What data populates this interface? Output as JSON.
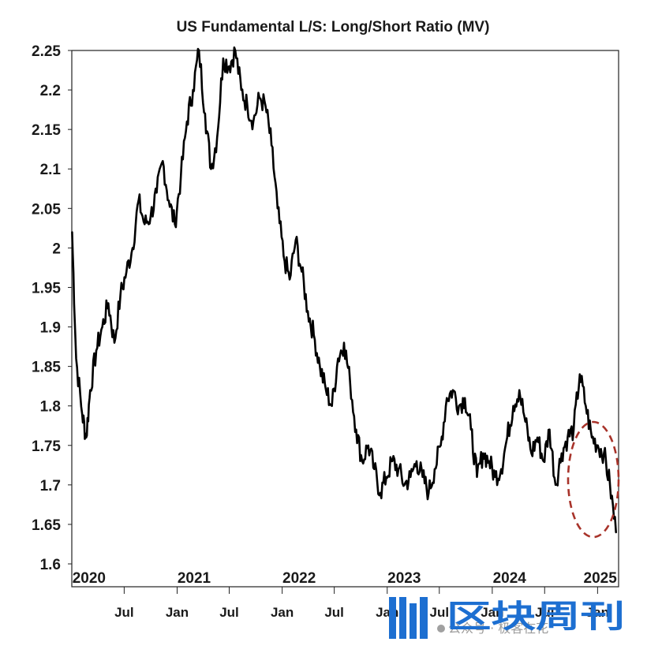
{
  "chart_data": {
    "type": "line",
    "title": "US Fundamental L/S: Long/Short Ratio (MV)",
    "xlabel": "",
    "ylabel": "",
    "ylim": [
      1.6,
      2.25
    ],
    "yticks": [
      "1.6",
      "1.65",
      "1.7",
      "1.75",
      "1.8",
      "1.85",
      "1.9",
      "1.95",
      "2",
      "2.05",
      "2.1",
      "2.15",
      "2.2",
      "2.25"
    ],
    "year_labels": [
      {
        "label": "2020",
        "date": "2020-03-01"
      },
      {
        "label": "2021",
        "date": "2021-03-01"
      },
      {
        "label": "2022",
        "date": "2022-03-01"
      },
      {
        "label": "2023",
        "date": "2023-03-01"
      },
      {
        "label": "2024",
        "date": "2024-03-01"
      },
      {
        "label": "2025",
        "date": "2025-01-10"
      }
    ],
    "month_labels": [
      {
        "label": "Jul",
        "date": "2020-07-01"
      },
      {
        "label": "Jan",
        "date": "2021-01-01"
      },
      {
        "label": "Jul",
        "date": "2021-07-01"
      },
      {
        "label": "Jan",
        "date": "2022-01-01"
      },
      {
        "label": "Jul",
        "date": "2022-07-01"
      },
      {
        "label": "Jan",
        "date": "2023-01-01"
      },
      {
        "label": "Jul",
        "date": "2023-07-01"
      },
      {
        "label": "Jan",
        "date": "2024-01-01"
      },
      {
        "label": "Jul",
        "date": "2024-07-01"
      },
      {
        "label": "Jan",
        "date": "2025-01-01"
      }
    ],
    "xlim": [
      "2020-01-01",
      "2025-03-15"
    ],
    "grid": false,
    "highlight": {
      "shape": "ellipse",
      "style": "dashed",
      "color": "#a8332a",
      "around": "late 2024 – early 2025 decline"
    },
    "series": [
      {
        "color": "#000000",
        "points": [
          [
            "2020-01-02",
            2.02
          ],
          [
            "2020-01-16",
            1.86
          ],
          [
            "2020-02-06",
            1.79
          ],
          [
            "2020-02-20",
            1.76
          ],
          [
            "2020-03-05",
            1.82
          ],
          [
            "2020-03-26",
            1.87
          ],
          [
            "2020-04-16",
            1.9
          ],
          [
            "2020-05-07",
            1.93
          ],
          [
            "2020-05-28",
            1.88
          ],
          [
            "2020-06-18",
            1.94
          ],
          [
            "2020-07-09",
            1.97
          ],
          [
            "2020-07-30",
            2.0
          ],
          [
            "2020-08-20",
            2.06
          ],
          [
            "2020-09-10",
            2.03
          ],
          [
            "2020-10-01",
            2.04
          ],
          [
            "2020-10-22",
            2.07
          ],
          [
            "2020-11-12",
            2.11
          ],
          [
            "2020-12-03",
            2.06
          ],
          [
            "2020-12-24",
            2.03
          ],
          [
            "2021-01-14",
            2.09
          ],
          [
            "2021-02-04",
            2.16
          ],
          [
            "2021-02-25",
            2.2
          ],
          [
            "2021-03-18",
            2.25
          ],
          [
            "2021-04-08",
            2.17
          ],
          [
            "2021-04-29",
            2.1
          ],
          [
            "2021-05-20",
            2.14
          ],
          [
            "2021-06-10",
            2.24
          ],
          [
            "2021-07-01",
            2.23
          ],
          [
            "2021-07-22",
            2.25
          ],
          [
            "2021-08-12",
            2.2
          ],
          [
            "2021-09-02",
            2.18
          ],
          [
            "2021-09-23",
            2.16
          ],
          [
            "2021-10-14",
            2.19
          ],
          [
            "2021-11-04",
            2.18
          ],
          [
            "2021-11-25",
            2.13
          ],
          [
            "2021-12-16",
            2.05
          ],
          [
            "2022-01-06",
            1.99
          ],
          [
            "2022-01-27",
            1.96
          ],
          [
            "2022-02-17",
            2.01
          ],
          [
            "2022-03-10",
            1.97
          ],
          [
            "2022-03-31",
            1.92
          ],
          [
            "2022-04-21",
            1.89
          ],
          [
            "2022-05-12",
            1.85
          ],
          [
            "2022-06-02",
            1.82
          ],
          [
            "2022-06-23",
            1.8
          ],
          [
            "2022-07-14",
            1.86
          ],
          [
            "2022-08-04",
            1.88
          ],
          [
            "2022-08-25",
            1.83
          ],
          [
            "2022-09-15",
            1.77
          ],
          [
            "2022-10-06",
            1.73
          ],
          [
            "2022-10-27",
            1.75
          ],
          [
            "2022-11-17",
            1.72
          ],
          [
            "2022-12-08",
            1.69
          ],
          [
            "2022-12-29",
            1.71
          ],
          [
            "2023-01-19",
            1.73
          ],
          [
            "2023-02-09",
            1.72
          ],
          [
            "2023-03-02",
            1.7
          ],
          [
            "2023-03-23",
            1.71
          ],
          [
            "2023-04-13",
            1.73
          ],
          [
            "2023-05-04",
            1.71
          ],
          [
            "2023-05-25",
            1.69
          ],
          [
            "2023-06-15",
            1.72
          ],
          [
            "2023-07-06",
            1.75
          ],
          [
            "2023-07-27",
            1.81
          ],
          [
            "2023-08-17",
            1.82
          ],
          [
            "2023-09-07",
            1.8
          ],
          [
            "2023-09-28",
            1.81
          ],
          [
            "2023-10-19",
            1.77
          ],
          [
            "2023-11-09",
            1.71
          ],
          [
            "2023-11-30",
            1.74
          ],
          [
            "2023-12-21",
            1.73
          ],
          [
            "2024-01-11",
            1.71
          ],
          [
            "2024-02-01",
            1.72
          ],
          [
            "2024-02-22",
            1.76
          ],
          [
            "2024-03-14",
            1.8
          ],
          [
            "2024-04-04",
            1.82
          ],
          [
            "2024-04-25",
            1.78
          ],
          [
            "2024-05-16",
            1.74
          ],
          [
            "2024-06-06",
            1.76
          ],
          [
            "2024-06-27",
            1.73
          ],
          [
            "2024-07-18",
            1.77
          ],
          [
            "2024-08-08",
            1.7
          ],
          [
            "2024-08-29",
            1.74
          ],
          [
            "2024-09-19",
            1.76
          ],
          [
            "2024-10-10",
            1.77
          ],
          [
            "2024-10-31",
            1.84
          ],
          [
            "2024-11-21",
            1.8
          ],
          [
            "2024-12-12",
            1.76
          ],
          [
            "2025-01-02",
            1.75
          ],
          [
            "2025-01-23",
            1.74
          ],
          [
            "2025-02-13",
            1.7
          ],
          [
            "2025-03-06",
            1.64
          ]
        ]
      }
    ]
  },
  "watermark": {
    "prefix": "公众号 · 极客在花",
    "brand": "区块周刊"
  }
}
